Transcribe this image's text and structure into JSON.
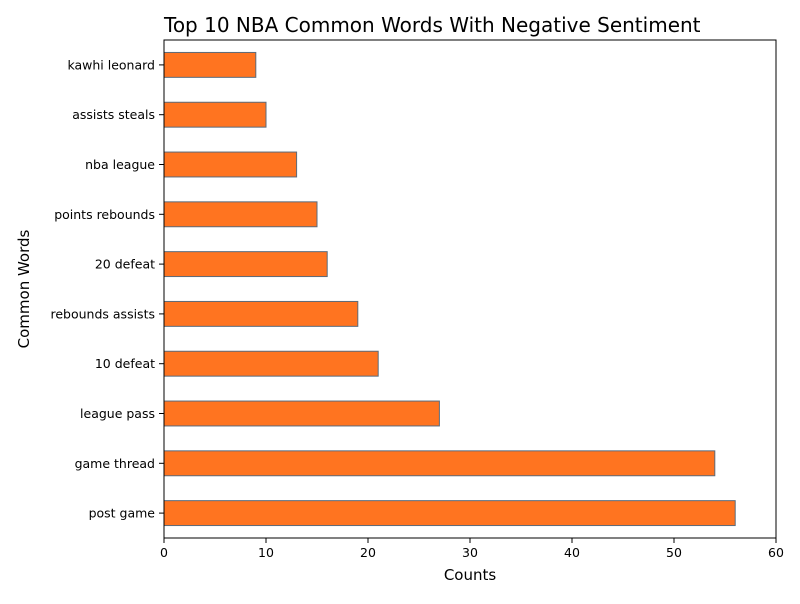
{
  "chart_data": {
    "type": "bar",
    "orientation": "horizontal",
    "title": "Top 10 NBA Common Words With Negative Sentiment",
    "xlabel": "Counts",
    "ylabel": "Common Words",
    "categories": [
      "post game",
      "game thread",
      "league pass",
      "10 defeat",
      "rebounds assists",
      "20 defeat",
      "points rebounds",
      "nba league",
      "assists steals",
      "kawhi leonard"
    ],
    "values": [
      56,
      54,
      27,
      21,
      19,
      16,
      15,
      13,
      10,
      9
    ],
    "xlim": [
      0,
      60
    ],
    "xticks": [
      "0",
      "10",
      "20",
      "30",
      "40",
      "50",
      "60"
    ],
    "grid": false,
    "legend": "none",
    "colors": {
      "bar_fill": "#ff7420",
      "bar_edge": "#5b6b7b",
      "axis": "#000000"
    }
  }
}
